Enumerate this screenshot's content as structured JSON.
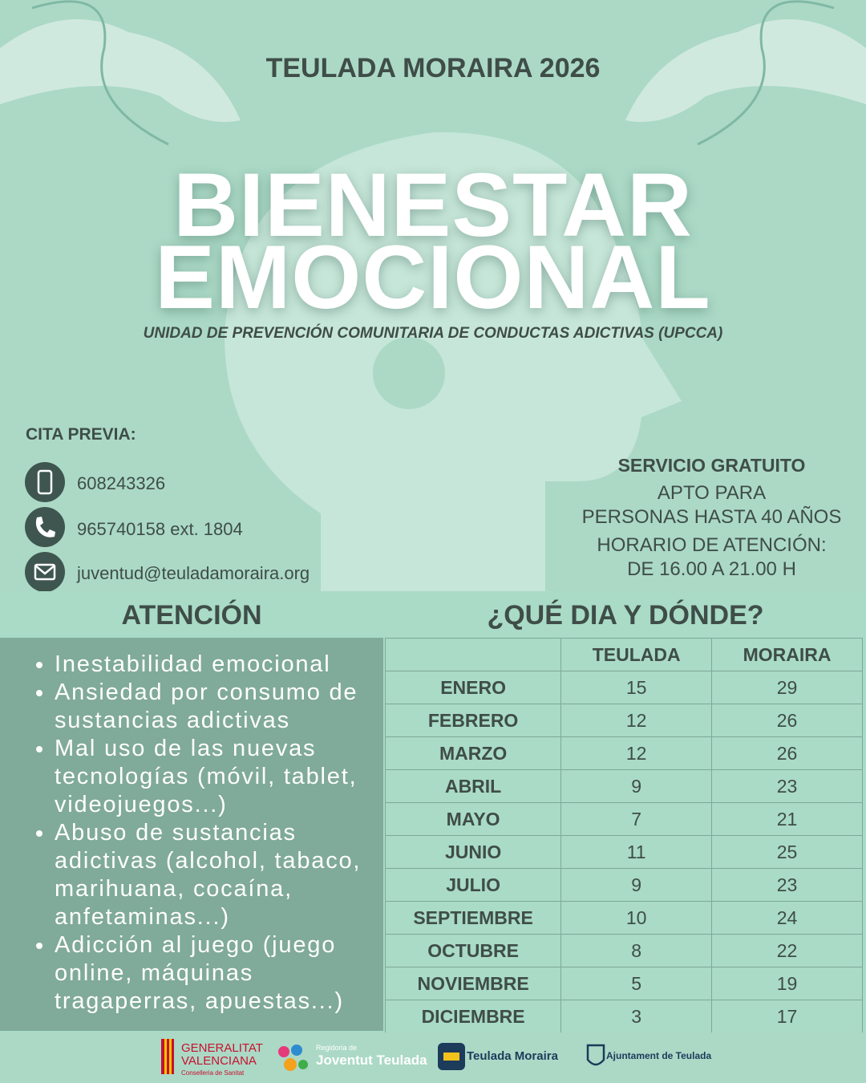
{
  "header": {
    "subtitle": "TEULADA MORAIRA 2026",
    "title_lines": [
      "BIENESTAR",
      "EMOCIONAL"
    ],
    "tagline": "UNIDAD DE PREVENCIÓN COMUNITARIA DE CONDUCTAS ADICTIVAS (UPCCA)"
  },
  "contact": {
    "heading": "CITA PREVIA:",
    "items": [
      "608243326",
      "965740158 ext. 1804",
      "juventud@teuladamoraira.org"
    ]
  },
  "service": {
    "lines": [
      "SERVICIO GRATUITO",
      "APTO PARA",
      "PERSONAS HASTA 40 AÑOS",
      "HORARIO DE ATENCIÓN:",
      "DE 16.00 A 21.00 H"
    ]
  },
  "attention": {
    "heading": "ATENCIÓN",
    "items": [
      "Inestabilidad emocional",
      "Ansiedad por consumo de sustancias adictivas",
      "Mal uso de las nuevas tecnologías (móvil, tablet, videojuegos...)",
      "Abuso de sustancias adictivas (alcohol, tabaco, marihuana, cocaína, anfetaminas...)",
      "Adicción al juego (juego online, máquinas tragaperras, apuestas...)"
    ]
  },
  "schedule": {
    "heading": "¿QUÉ DIA Y DÓNDE?",
    "columns": [
      "TEULADA",
      "MORAIRA"
    ],
    "rows": [
      [
        "ENERO",
        15,
        29
      ],
      [
        "FEBRERO",
        12,
        26
      ],
      [
        "MARZO",
        12,
        26
      ],
      [
        "ABRIL",
        9,
        23
      ],
      [
        "MAYO",
        7,
        21
      ],
      [
        "JUNIO",
        11,
        25
      ],
      [
        "JULIO",
        9,
        23
      ],
      [
        "SEPTIEMBRE",
        10,
        24
      ],
      [
        "OCTUBRE",
        8,
        22
      ],
      [
        "NOVIEMBRE",
        5,
        19
      ],
      [
        "DICIEMBRE",
        3,
        17
      ]
    ]
  },
  "footer": {
    "logos": [
      "GENERALITAT",
      "VALENCIANA",
      "Conselleria de Sanitat",
      "Regidoria de",
      "Joventut Teulada",
      "Teulada Moraira",
      "Ajuntament de Teulada"
    ]
  }
}
